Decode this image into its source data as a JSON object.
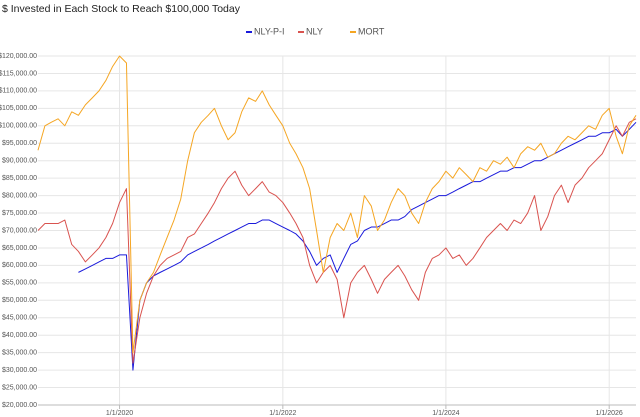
{
  "chart_data": {
    "type": "line",
    "title": "$ Invested in Each Stock to Reach $100,000 Today",
    "x": [
      "2019-01-01",
      "2019-02-01",
      "2019-03-01",
      "2019-04-01",
      "2019-05-01",
      "2019-06-01",
      "2019-07-01",
      "2019-08-01",
      "2019-09-01",
      "2019-10-01",
      "2019-11-01",
      "2019-12-01",
      "2020-01-01",
      "2020-02-01",
      "2020-03-01",
      "2020-04-01",
      "2020-05-01",
      "2020-06-01",
      "2020-07-01",
      "2020-08-01",
      "2020-09-01",
      "2020-10-01",
      "2020-11-01",
      "2020-12-01",
      "2021-01-01",
      "2021-02-01",
      "2021-03-01",
      "2021-04-01",
      "2021-05-01",
      "2021-06-01",
      "2021-07-01",
      "2021-08-01",
      "2021-09-01",
      "2021-10-01",
      "2021-11-01",
      "2021-12-01",
      "2022-01-01",
      "2022-02-01",
      "2022-03-01",
      "2022-04-01",
      "2022-05-01",
      "2022-06-01",
      "2022-07-01",
      "2022-08-01",
      "2022-09-01",
      "2022-10-01",
      "2022-11-01",
      "2022-12-01",
      "2023-01-01",
      "2023-02-01",
      "2023-03-01",
      "2023-04-01",
      "2023-05-01",
      "2023-06-01",
      "2023-07-01",
      "2023-08-01",
      "2023-09-01",
      "2023-10-01",
      "2023-11-01",
      "2023-12-01",
      "2024-01-01",
      "2024-02-01",
      "2024-03-01",
      "2024-04-01",
      "2024-05-01",
      "2024-06-01",
      "2024-07-01",
      "2024-08-01",
      "2024-09-01",
      "2024-10-01",
      "2024-11-01",
      "2024-12-01",
      "2025-01-01",
      "2025-02-01",
      "2025-03-01",
      "2025-04-01",
      "2025-05-01",
      "2025-06-01",
      "2025-07-01",
      "2025-08-01",
      "2025-09-01",
      "2025-10-01",
      "2025-11-01",
      "2025-12-01",
      "2026-01-01",
      "2026-02-01",
      "2026-03-01",
      "2026-04-01",
      "2026-05-01"
    ],
    "series": [
      {
        "name": "NLY-P-I",
        "color": "#1a1adb",
        "values": [
          null,
          null,
          null,
          null,
          null,
          null,
          58000,
          59000,
          60000,
          61000,
          62000,
          62000,
          63000,
          63000,
          30000,
          50000,
          55000,
          57000,
          58000,
          59000,
          60000,
          61000,
          63000,
          64000,
          65000,
          66000,
          67000,
          68000,
          69000,
          70000,
          71000,
          72000,
          72000,
          73000,
          73000,
          72000,
          71000,
          70000,
          69000,
          67000,
          64000,
          60000,
          62000,
          63000,
          58000,
          62000,
          66000,
          67000,
          70000,
          71000,
          71000,
          72000,
          73000,
          73000,
          74000,
          76000,
          77000,
          78000,
          79000,
          80000,
          80000,
          81000,
          82000,
          83000,
          84000,
          84000,
          85000,
          86000,
          87000,
          87000,
          88000,
          88000,
          89000,
          90000,
          90000,
          91000,
          92000,
          93000,
          94000,
          95000,
          96000,
          97000,
          97000,
          98000,
          98000,
          99000,
          97000,
          99000,
          101000
        ]
      },
      {
        "name": "NLY",
        "color": "#d9534f",
        "values": [
          70000,
          72000,
          72000,
          72000,
          73000,
          66000,
          64000,
          61000,
          63000,
          65000,
          68000,
          72000,
          78000,
          82000,
          32000,
          45000,
          52000,
          57000,
          60000,
          62000,
          63000,
          64000,
          68000,
          69000,
          72000,
          75000,
          78000,
          82000,
          85000,
          87000,
          83000,
          80000,
          82000,
          84000,
          81000,
          80000,
          78000,
          75000,
          72000,
          68000,
          60000,
          55000,
          58000,
          60000,
          56000,
          45000,
          55000,
          58000,
          60000,
          56000,
          52000,
          56000,
          58000,
          60000,
          57000,
          53000,
          50000,
          58000,
          62000,
          63000,
          65000,
          62000,
          63000,
          60000,
          62000,
          65000,
          68000,
          70000,
          72000,
          70000,
          73000,
          72000,
          75000,
          80000,
          70000,
          74000,
          80000,
          83000,
          78000,
          83000,
          85000,
          88000,
          90000,
          92000,
          96000,
          100000,
          97000,
          101000,
          102000
        ]
      },
      {
        "name": "MORT",
        "color": "#f5a623",
        "values": [
          93000,
          100000,
          101000,
          102000,
          100000,
          104000,
          103000,
          106000,
          108000,
          110000,
          113000,
          117000,
          120000,
          118000,
          35000,
          50000,
          55000,
          58000,
          63000,
          68000,
          73000,
          79000,
          90000,
          98000,
          101000,
          103000,
          105000,
          100000,
          96000,
          98000,
          104000,
          108000,
          107000,
          110000,
          106000,
          103000,
          100000,
          95000,
          92000,
          88000,
          82000,
          70000,
          58000,
          68000,
          72000,
          70000,
          75000,
          68000,
          80000,
          77000,
          70000,
          73000,
          78000,
          82000,
          80000,
          75000,
          72000,
          78000,
          82000,
          84000,
          87000,
          85000,
          88000,
          86000,
          84000,
          88000,
          87000,
          90000,
          89000,
          91000,
          88000,
          92000,
          94000,
          93000,
          95000,
          91000,
          92000,
          95000,
          97000,
          96000,
          98000,
          100000,
          99000,
          103000,
          105000,
          97000,
          92000,
          100000,
          103000
        ]
      }
    ],
    "xlim": [
      "2019-01-01",
      "2026-05-01"
    ],
    "xticks": [
      {
        "value": "2020-01-01",
        "label": "1/1/2020"
      },
      {
        "value": "2022-01-01",
        "label": "1/1/2022"
      },
      {
        "value": "2024-01-01",
        "label": "1/1/2024"
      },
      {
        "value": "2026-01-01",
        "label": "1/1/2026"
      }
    ],
    "ylim": [
      20000,
      120000
    ],
    "yticks": [
      {
        "value": 20000,
        "label": "$20,000.00"
      },
      {
        "value": 25000,
        "label": "$25,000.00"
      },
      {
        "value": 30000,
        "label": "$30,000.00"
      },
      {
        "value": 35000,
        "label": "$35,000.00"
      },
      {
        "value": 40000,
        "label": "$40,000.00"
      },
      {
        "value": 45000,
        "label": "$45,000.00"
      },
      {
        "value": 50000,
        "label": "$50,000.00"
      },
      {
        "value": 55000,
        "label": "$55,000.00"
      },
      {
        "value": 60000,
        "label": "$60,000.00"
      },
      {
        "value": 65000,
        "label": "$65,000.00"
      },
      {
        "value": 70000,
        "label": "$70,000.00"
      },
      {
        "value": 75000,
        "label": "$75,000.00"
      },
      {
        "value": 80000,
        "label": "$80,000.00"
      },
      {
        "value": 85000,
        "label": "$85,000.00"
      },
      {
        "value": 90000,
        "label": "$90,000.00"
      },
      {
        "value": 95000,
        "label": "$95,000.00"
      },
      {
        "value": 100000,
        "label": "$100,000.00"
      },
      {
        "value": 105000,
        "label": "$105,000.00"
      },
      {
        "value": 110000,
        "label": "$110,000.00"
      },
      {
        "value": 115000,
        "label": "$115,000.00"
      },
      {
        "value": 120000,
        "label": "$120,000.00"
      }
    ],
    "grid": true,
    "legend": "top"
  }
}
